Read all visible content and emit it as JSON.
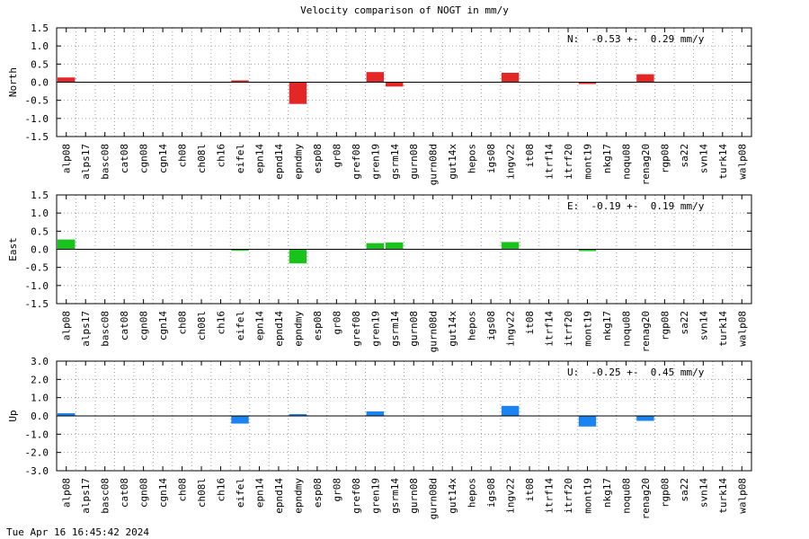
{
  "title": "Velocity comparison of NOGT in mm/y",
  "footer_timestamp": "Tue Apr 16 16:45:42 2024",
  "chart_data": [
    {
      "type": "bar",
      "ylabel": "North",
      "ylim": [
        -1.5,
        1.5
      ],
      "yticks": [
        -1.5,
        -1.0,
        -0.5,
        0.0,
        0.5,
        1.0,
        1.5
      ],
      "ytick_labels": [
        "-1.5",
        "-1.0",
        "-0.5",
        "0.0",
        "0.5",
        "1.0",
        "1.5"
      ],
      "annotation": "N:  -0.53 +-  0.29 mm/y",
      "color": "#e32727",
      "grid": true,
      "categories": [
        "alp08",
        "alps17",
        "basc08",
        "cat08",
        "cgn08",
        "cgn14",
        "ch08",
        "ch08l",
        "ch16",
        "eifel",
        "epn14",
        "epnd14",
        "epndmy",
        "esp08",
        "gr08",
        "gref08",
        "gren19",
        "gsrm14",
        "gurn08",
        "gurn08d",
        "gut14x",
        "hepos",
        "igs08",
        "ingv22",
        "it08",
        "itrf14",
        "itrf20",
        "mont19",
        "nkg17",
        "noqu08",
        "renag20",
        "rgp08",
        "sa22",
        "svn14",
        "turk14",
        "walp08"
      ],
      "values": [
        0.13,
        0,
        0,
        0,
        0,
        0,
        0,
        0,
        0,
        0.05,
        0,
        0,
        -0.6,
        0,
        0,
        0,
        0.28,
        -0.12,
        0,
        0,
        0,
        0,
        0,
        0.26,
        0,
        0,
        0,
        -0.05,
        0,
        0,
        0.22,
        0,
        0,
        0,
        0,
        0
      ]
    },
    {
      "type": "bar",
      "ylabel": "East",
      "ylim": [
        -1.5,
        1.5
      ],
      "yticks": [
        -1.5,
        -1.0,
        -0.5,
        0.0,
        0.5,
        1.0,
        1.5
      ],
      "ytick_labels": [
        "-1.5",
        "-1.0",
        "-0.5",
        "0.0",
        "0.5",
        "1.0",
        "1.5"
      ],
      "annotation": "E:  -0.19 +-  0.19 mm/y",
      "color": "#19c31c",
      "grid": true,
      "categories": [
        "alp08",
        "alps17",
        "basc08",
        "cat08",
        "cgn08",
        "cgn14",
        "ch08",
        "ch08l",
        "ch16",
        "eifel",
        "epn14",
        "epnd14",
        "epndmy",
        "esp08",
        "gr08",
        "gref08",
        "gren19",
        "gsrm14",
        "gurn08",
        "gurn08d",
        "gut14x",
        "hepos",
        "igs08",
        "ingv22",
        "it08",
        "itrf14",
        "itrf20",
        "mont19",
        "nkg17",
        "noqu08",
        "renag20",
        "rgp08",
        "sa22",
        "svn14",
        "turk14",
        "walp08"
      ],
      "values": [
        0.27,
        0,
        0,
        0,
        0,
        0,
        0,
        0,
        0,
        -0.04,
        0,
        0,
        -0.39,
        0,
        0,
        0,
        0.17,
        0.19,
        0,
        0,
        0,
        0,
        0,
        0.2,
        0,
        0,
        0,
        -0.05,
        0,
        0,
        0,
        0,
        0,
        0,
        0,
        0
      ]
    },
    {
      "type": "bar",
      "ylabel": "Up",
      "ylim": [
        -3.0,
        3.0
      ],
      "yticks": [
        -3.0,
        -2.0,
        -1.0,
        0.0,
        1.0,
        2.0,
        3.0
      ],
      "ytick_labels": [
        "-3.0",
        "-2.0",
        "-1.0",
        "0.0",
        "1.0",
        "2.0",
        "3.0"
      ],
      "annotation": "U:  -0.25 +-  0.45 mm/y",
      "color": "#1b84f0",
      "grid": true,
      "categories": [
        "alp08",
        "alps17",
        "basc08",
        "cat08",
        "cgn08",
        "cgn14",
        "ch08",
        "ch08l",
        "ch16",
        "eifel",
        "epn14",
        "epnd14",
        "epndmy",
        "esp08",
        "gr08",
        "gref08",
        "gren19",
        "gsrm14",
        "gurn08",
        "gurn08d",
        "gut14x",
        "hepos",
        "igs08",
        "ingv22",
        "it08",
        "itrf14",
        "itrf20",
        "mont19",
        "nkg17",
        "noqu08",
        "renag20",
        "rgp08",
        "sa22",
        "svn14",
        "turk14",
        "walp08"
      ],
      "values": [
        0.15,
        0,
        0,
        0,
        0,
        0,
        0,
        0,
        0,
        -0.42,
        0,
        0,
        0.1,
        0,
        0,
        0,
        0.25,
        0,
        0,
        0,
        0,
        0,
        0,
        0.55,
        0,
        0,
        0,
        -0.58,
        0,
        0,
        -0.27,
        0,
        0,
        0,
        0,
        0
      ]
    }
  ]
}
